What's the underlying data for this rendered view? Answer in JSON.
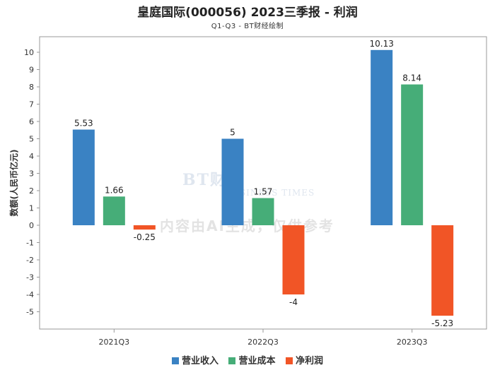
{
  "chart_data": {
    "type": "bar",
    "title": "皇庭国际(000056) 2023三季报 - 利润",
    "subtitle": "Q1-Q3 - BT财经绘制",
    "ylabel": "数额(人民币亿元)",
    "xlabel": "",
    "categories": [
      "2021Q3",
      "2022Q3",
      "2023Q3"
    ],
    "ylim": [
      -5.8,
      10.8
    ],
    "yticks": [
      10,
      9,
      8,
      7,
      6,
      5,
      4,
      3,
      2,
      1,
      0,
      -1,
      -2,
      -3,
      -4,
      -5
    ],
    "series": [
      {
        "name": "营业收入",
        "color": "#3a82c3",
        "values": [
          5.53,
          5,
          10.13
        ],
        "labels": [
          "5.53",
          "5",
          "10.13"
        ]
      },
      {
        "name": "营业成本",
        "color": "#46ad78",
        "values": [
          1.66,
          1.57,
          8.14
        ],
        "labels": [
          "1.66",
          "1.57",
          "8.14"
        ]
      },
      {
        "name": "净利润",
        "color": "#f15526",
        "values": [
          -0.25,
          -4,
          -5.23
        ],
        "labels": [
          "-0.25",
          "-4",
          "-5.23"
        ]
      }
    ]
  },
  "watermark": {
    "brand": "BT财经",
    "brand_en": "BUSINESS TIMES",
    "notice": "内容由AI生成，仅供参考"
  }
}
